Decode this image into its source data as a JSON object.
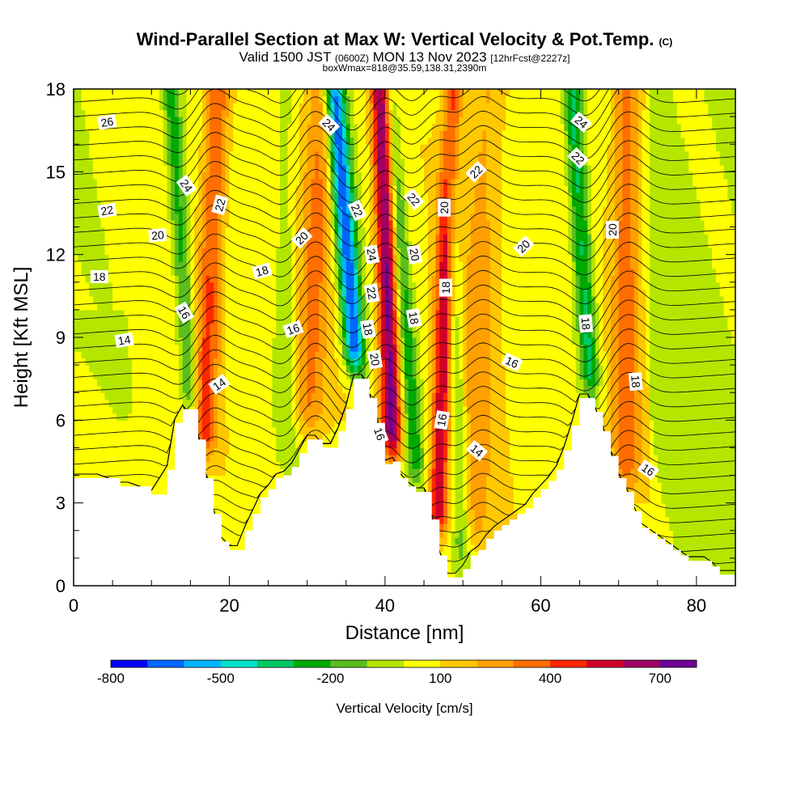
{
  "title": {
    "main": "Wind-Parallel Section at Max W: Vertical Velocity & Pot.Temp.",
    "main_mark": "(C)",
    "valid_prefix": "Valid 1500 JST",
    "valid_utc": "(0600Z)",
    "valid_date": "MON 13 Nov 2023",
    "fcst": "[12hrFcst@2227z]",
    "boxinfo": "boxWmax=818@35.59,138.31,2390m"
  },
  "colors": {
    "terrain": "#ffffff",
    "frame": "#000000",
    "palette": [
      "#0000ff",
      "#0066ff",
      "#00b4ff",
      "#00e1c8",
      "#00c864",
      "#00aa00",
      "#5abe1e",
      "#b4e600",
      "#ffff00",
      "#ffc800",
      "#ffa000",
      "#ff6e00",
      "#ff2800",
      "#d20028",
      "#a00064",
      "#6e0096"
    ]
  },
  "chart_data": {
    "type": "heatmap",
    "xlabel": "Distance [nm]",
    "ylabel": "Height [Kft MSL]",
    "xlim": [
      0,
      85
    ],
    "ylim": [
      0,
      18
    ],
    "x_ticks": [
      0,
      20,
      40,
      60,
      80
    ],
    "y_ticks": [
      0,
      3,
      6,
      9,
      12,
      15,
      18
    ],
    "colorbar": {
      "label": "Vertical Velocity [cm/s]",
      "tick_labels": [
        "-800",
        "-500",
        "-200",
        "100",
        "400",
        "700"
      ],
      "tick_values": [
        -800,
        -500,
        -200,
        100,
        400,
        700
      ],
      "range": [
        -800,
        800
      ],
      "step": 100
    },
    "terrain_profile": {
      "x": [
        0,
        3,
        6,
        7,
        10,
        12,
        13,
        14,
        16,
        17,
        18,
        19,
        20,
        21,
        22,
        23,
        24,
        25,
        26,
        27,
        28,
        29,
        30,
        31,
        32,
        33,
        34,
        35,
        36,
        37,
        38,
        39,
        40,
        41,
        42,
        43,
        44,
        45,
        46,
        47,
        48,
        49,
        50,
        51,
        52,
        53,
        54,
        55,
        56,
        57,
        58,
        59,
        60,
        61,
        62,
        63,
        64,
        65,
        66,
        67,
        68,
        69,
        70,
        71,
        72,
        73,
        74,
        75,
        76,
        77,
        78,
        79,
        80,
        81,
        82,
        83,
        84,
        85
      ],
      "height_kft": [
        3.9,
        3.9,
        3.6,
        3.6,
        3.3,
        4.2,
        5.9,
        6.4,
        5.3,
        3.9,
        2.6,
        1.6,
        1.3,
        1.3,
        2.0,
        2.6,
        3.2,
        3.5,
        3.9,
        4.0,
        4.3,
        4.8,
        5.3,
        5.3,
        5.0,
        5.0,
        5.6,
        6.4,
        7.5,
        7.5,
        6.8,
        5.9,
        4.4,
        4.5,
        3.9,
        3.6,
        3.4,
        3.4,
        2.4,
        1.1,
        0.3,
        0.3,
        0.6,
        1.1,
        1.3,
        1.7,
        2.0,
        2.2,
        2.4,
        2.6,
        2.8,
        3.2,
        3.5,
        3.8,
        4.2,
        4.9,
        5.8,
        6.8,
        6.8,
        6.3,
        5.6,
        4.7,
        3.9,
        3.4,
        2.7,
        2.1,
        1.9,
        1.7,
        1.5,
        1.3,
        1.1,
        0.9,
        0.9,
        0.9,
        0.7,
        0.4,
        0.4,
        0.4
      ]
    },
    "updraft_bands": [
      {
        "x_bottom": 16,
        "x_top": 18.5,
        "peak_cms": 350,
        "width_nm": 1.6
      },
      {
        "x_bottom": 29,
        "x_top": 32,
        "peak_cms": 250,
        "width_nm": 2.0
      },
      {
        "x_bottom": 41.5,
        "x_top": 39.5,
        "peak_cms": 700,
        "width_nm": 1.3
      },
      {
        "x_bottom": 46.5,
        "x_top": 48.5,
        "peak_cms": 550,
        "width_nm": 1.2
      },
      {
        "x_bottom": 51,
        "x_top": 53,
        "peak_cms": 180,
        "width_nm": 2.5
      },
      {
        "x_bottom": 71,
        "x_top": 71,
        "peak_cms": 300,
        "width_nm": 1.8
      }
    ],
    "downdraft_bands": [
      {
        "x_bottom": 16.5,
        "x_top": 12.5,
        "peak_cms": -300,
        "width_nm": 1.2
      },
      {
        "x_bottom": 38.5,
        "x_top": 33.5,
        "peak_cms": -750,
        "width_nm": 1.3
      },
      {
        "x_bottom": 45,
        "x_top": 40.5,
        "peak_cms": -300,
        "width_nm": 1.1
      },
      {
        "x_bottom": 50,
        "x_top": 48,
        "peak_cms": -250,
        "width_nm": 1.1
      },
      {
        "x_bottom": 68,
        "x_top": 64,
        "peak_cms": -400,
        "width_nm": 1.3
      },
      {
        "x_bottom": 28,
        "x_top": 27,
        "peak_cms": -120,
        "width_nm": 1.5
      }
    ],
    "theta_contour_labels": [
      {
        "text": "26",
        "x": 4.3,
        "y": 16.8,
        "rot": -10
      },
      {
        "text": "24",
        "x": 14.5,
        "y": 14.5,
        "rot": 55
      },
      {
        "text": "22",
        "x": 18.8,
        "y": 13.8,
        "rot": -75
      },
      {
        "text": "22",
        "x": 4.3,
        "y": 13.6,
        "rot": -10
      },
      {
        "text": "20",
        "x": 10.8,
        "y": 12.7,
        "rot": -5
      },
      {
        "text": "18",
        "x": 3.3,
        "y": 11.2,
        "rot": 0
      },
      {
        "text": "18",
        "x": 24.2,
        "y": 11.4,
        "rot": -15
      },
      {
        "text": "16",
        "x": 14.2,
        "y": 9.9,
        "rot": 60
      },
      {
        "text": "14",
        "x": 6.5,
        "y": 8.9,
        "rot": -10
      },
      {
        "text": "14",
        "x": 18.7,
        "y": 7.3,
        "rot": -35
      },
      {
        "text": "16",
        "x": 28.2,
        "y": 9.3,
        "rot": -20
      },
      {
        "text": "20",
        "x": 29.3,
        "y": 12.6,
        "rot": -45
      },
      {
        "text": "24",
        "x": 32.8,
        "y": 16.7,
        "rot": 45
      },
      {
        "text": "22",
        "x": 36.4,
        "y": 13.6,
        "rot": 65
      },
      {
        "text": "24",
        "x": 38.3,
        "y": 12.0,
        "rot": 80
      },
      {
        "text": "22",
        "x": 38.3,
        "y": 10.6,
        "rot": 80
      },
      {
        "text": "18",
        "x": 37.8,
        "y": 9.3,
        "rot": 80
      },
      {
        "text": "20",
        "x": 38.7,
        "y": 8.2,
        "rot": 80
      },
      {
        "text": "16",
        "x": 39.3,
        "y": 5.5,
        "rot": 70
      },
      {
        "text": "22",
        "x": 43.7,
        "y": 14.0,
        "rot": 50
      },
      {
        "text": "20",
        "x": 43.8,
        "y": 12.0,
        "rot": 80
      },
      {
        "text": "18",
        "x": 43.7,
        "y": 9.7,
        "rot": 80
      },
      {
        "text": "20",
        "x": 47.6,
        "y": 13.7,
        "rot": -90
      },
      {
        "text": "18",
        "x": 47.8,
        "y": 10.8,
        "rot": -90
      },
      {
        "text": "16",
        "x": 47.3,
        "y": 6.0,
        "rot": -80
      },
      {
        "text": "14",
        "x": 51.8,
        "y": 4.9,
        "rot": 40
      },
      {
        "text": "22",
        "x": 51.7,
        "y": 15.0,
        "rot": -45
      },
      {
        "text": "20",
        "x": 57.8,
        "y": 12.3,
        "rot": -45
      },
      {
        "text": "16",
        "x": 56.3,
        "y": 8.1,
        "rot": 25
      },
      {
        "text": "24",
        "x": 65.2,
        "y": 16.8,
        "rot": 40
      },
      {
        "text": "22",
        "x": 64.8,
        "y": 15.5,
        "rot": 45
      },
      {
        "text": "18",
        "x": 65.8,
        "y": 9.5,
        "rot": 85
      },
      {
        "text": "20",
        "x": 69.2,
        "y": 12.9,
        "rot": -90
      },
      {
        "text": "18",
        "x": 72.2,
        "y": 7.4,
        "rot": 85
      },
      {
        "text": "16",
        "x": 73.8,
        "y": 4.2,
        "rot": 35
      }
    ]
  }
}
